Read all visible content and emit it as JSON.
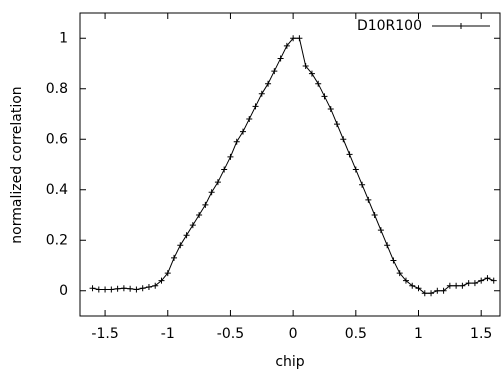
{
  "chart_data": {
    "type": "line",
    "xlabel": "chip",
    "ylabel": "normalized correlation",
    "x": [
      -1.6,
      -1.55,
      -1.5,
      -1.45,
      -1.4,
      -1.35,
      -1.3,
      -1.25,
      -1.2,
      -1.15,
      -1.1,
      -1.05,
      -1.0,
      -0.95,
      -0.9,
      -0.85,
      -0.8,
      -0.75,
      -0.7,
      -0.65,
      -0.6,
      -0.55,
      -0.5,
      -0.45,
      -0.4,
      -0.35,
      -0.3,
      -0.25,
      -0.2,
      -0.15,
      -0.1,
      -0.05,
      0,
      0.05,
      0.1,
      0.15,
      0.2,
      0.25,
      0.3,
      0.35,
      0.4,
      0.45,
      0.5,
      0.55,
      0.6,
      0.65,
      0.7,
      0.75,
      0.8,
      0.85,
      0.9,
      0.95,
      1.0,
      1.05,
      1.1,
      1.15,
      1.2,
      1.25,
      1.3,
      1.35,
      1.4,
      1.45,
      1.5,
      1.55,
      1.6
    ],
    "series": [
      {
        "name": "D10R100",
        "color": "#000000",
        "values": [
          0.01,
          0.005,
          0.005,
          0.005,
          0.008,
          0.01,
          0.008,
          0.005,
          0.01,
          0.015,
          0.02,
          0.04,
          0.07,
          0.13,
          0.18,
          0.22,
          0.26,
          0.3,
          0.34,
          0.39,
          0.43,
          0.48,
          0.53,
          0.59,
          0.63,
          0.68,
          0.73,
          0.78,
          0.82,
          0.87,
          0.92,
          0.97,
          1.0,
          1.0,
          0.89,
          0.86,
          0.82,
          0.77,
          0.72,
          0.66,
          0.6,
          0.54,
          0.48,
          0.42,
          0.36,
          0.3,
          0.24,
          0.18,
          0.12,
          0.07,
          0.04,
          0.02,
          0.01,
          -0.01,
          -0.01,
          0.0,
          0.0,
          0.02,
          0.02,
          0.02,
          0.03,
          0.03,
          0.04,
          0.05,
          0.04
        ]
      }
    ],
    "xlim": [
      -1.7,
      1.65
    ],
    "ylim": [
      -0.1,
      1.1
    ],
    "xticks": [
      -1.5,
      -1,
      -0.5,
      0,
      0.5,
      1,
      1.5
    ],
    "yticks": [
      0,
      0.2,
      0.4,
      0.6,
      0.8,
      1
    ],
    "legend": "top right",
    "grid": false
  }
}
